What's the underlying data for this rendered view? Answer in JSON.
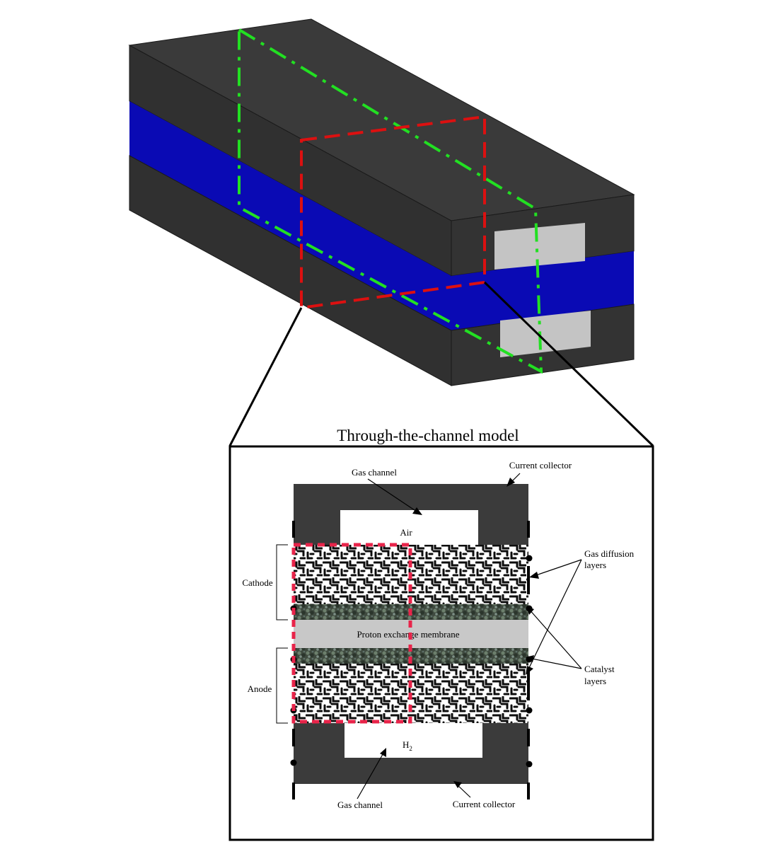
{
  "diagram": {
    "title": "Through-the-channel model",
    "labels": {
      "gas_channel_top": "Gas channel",
      "current_collector_top": "Current collector",
      "air": "Air",
      "gas_diffusion_layers_1": "Gas diffusion",
      "gas_diffusion_layers_2": "layers",
      "cathode": "Cathode",
      "anode": "Anode",
      "membrane": "Proton exchange membrane",
      "catalyst_layers_1": "Catalyst",
      "catalyst_layers_2": "layers",
      "h2_main": "H",
      "h2_sub": "2",
      "gas_channel_bottom": "Gas channel",
      "current_collector_bottom": "Current collector"
    },
    "colors": {
      "plate_dark": "#2e2e2e",
      "plate_top": "#3a3a3a",
      "membrane_blue": "#0a0ab4",
      "channel_grey": "#c4c4c4",
      "green_cut": "#22e022",
      "red_cut": "#dc1010",
      "pink_roi": "#e8244a"
    }
  }
}
